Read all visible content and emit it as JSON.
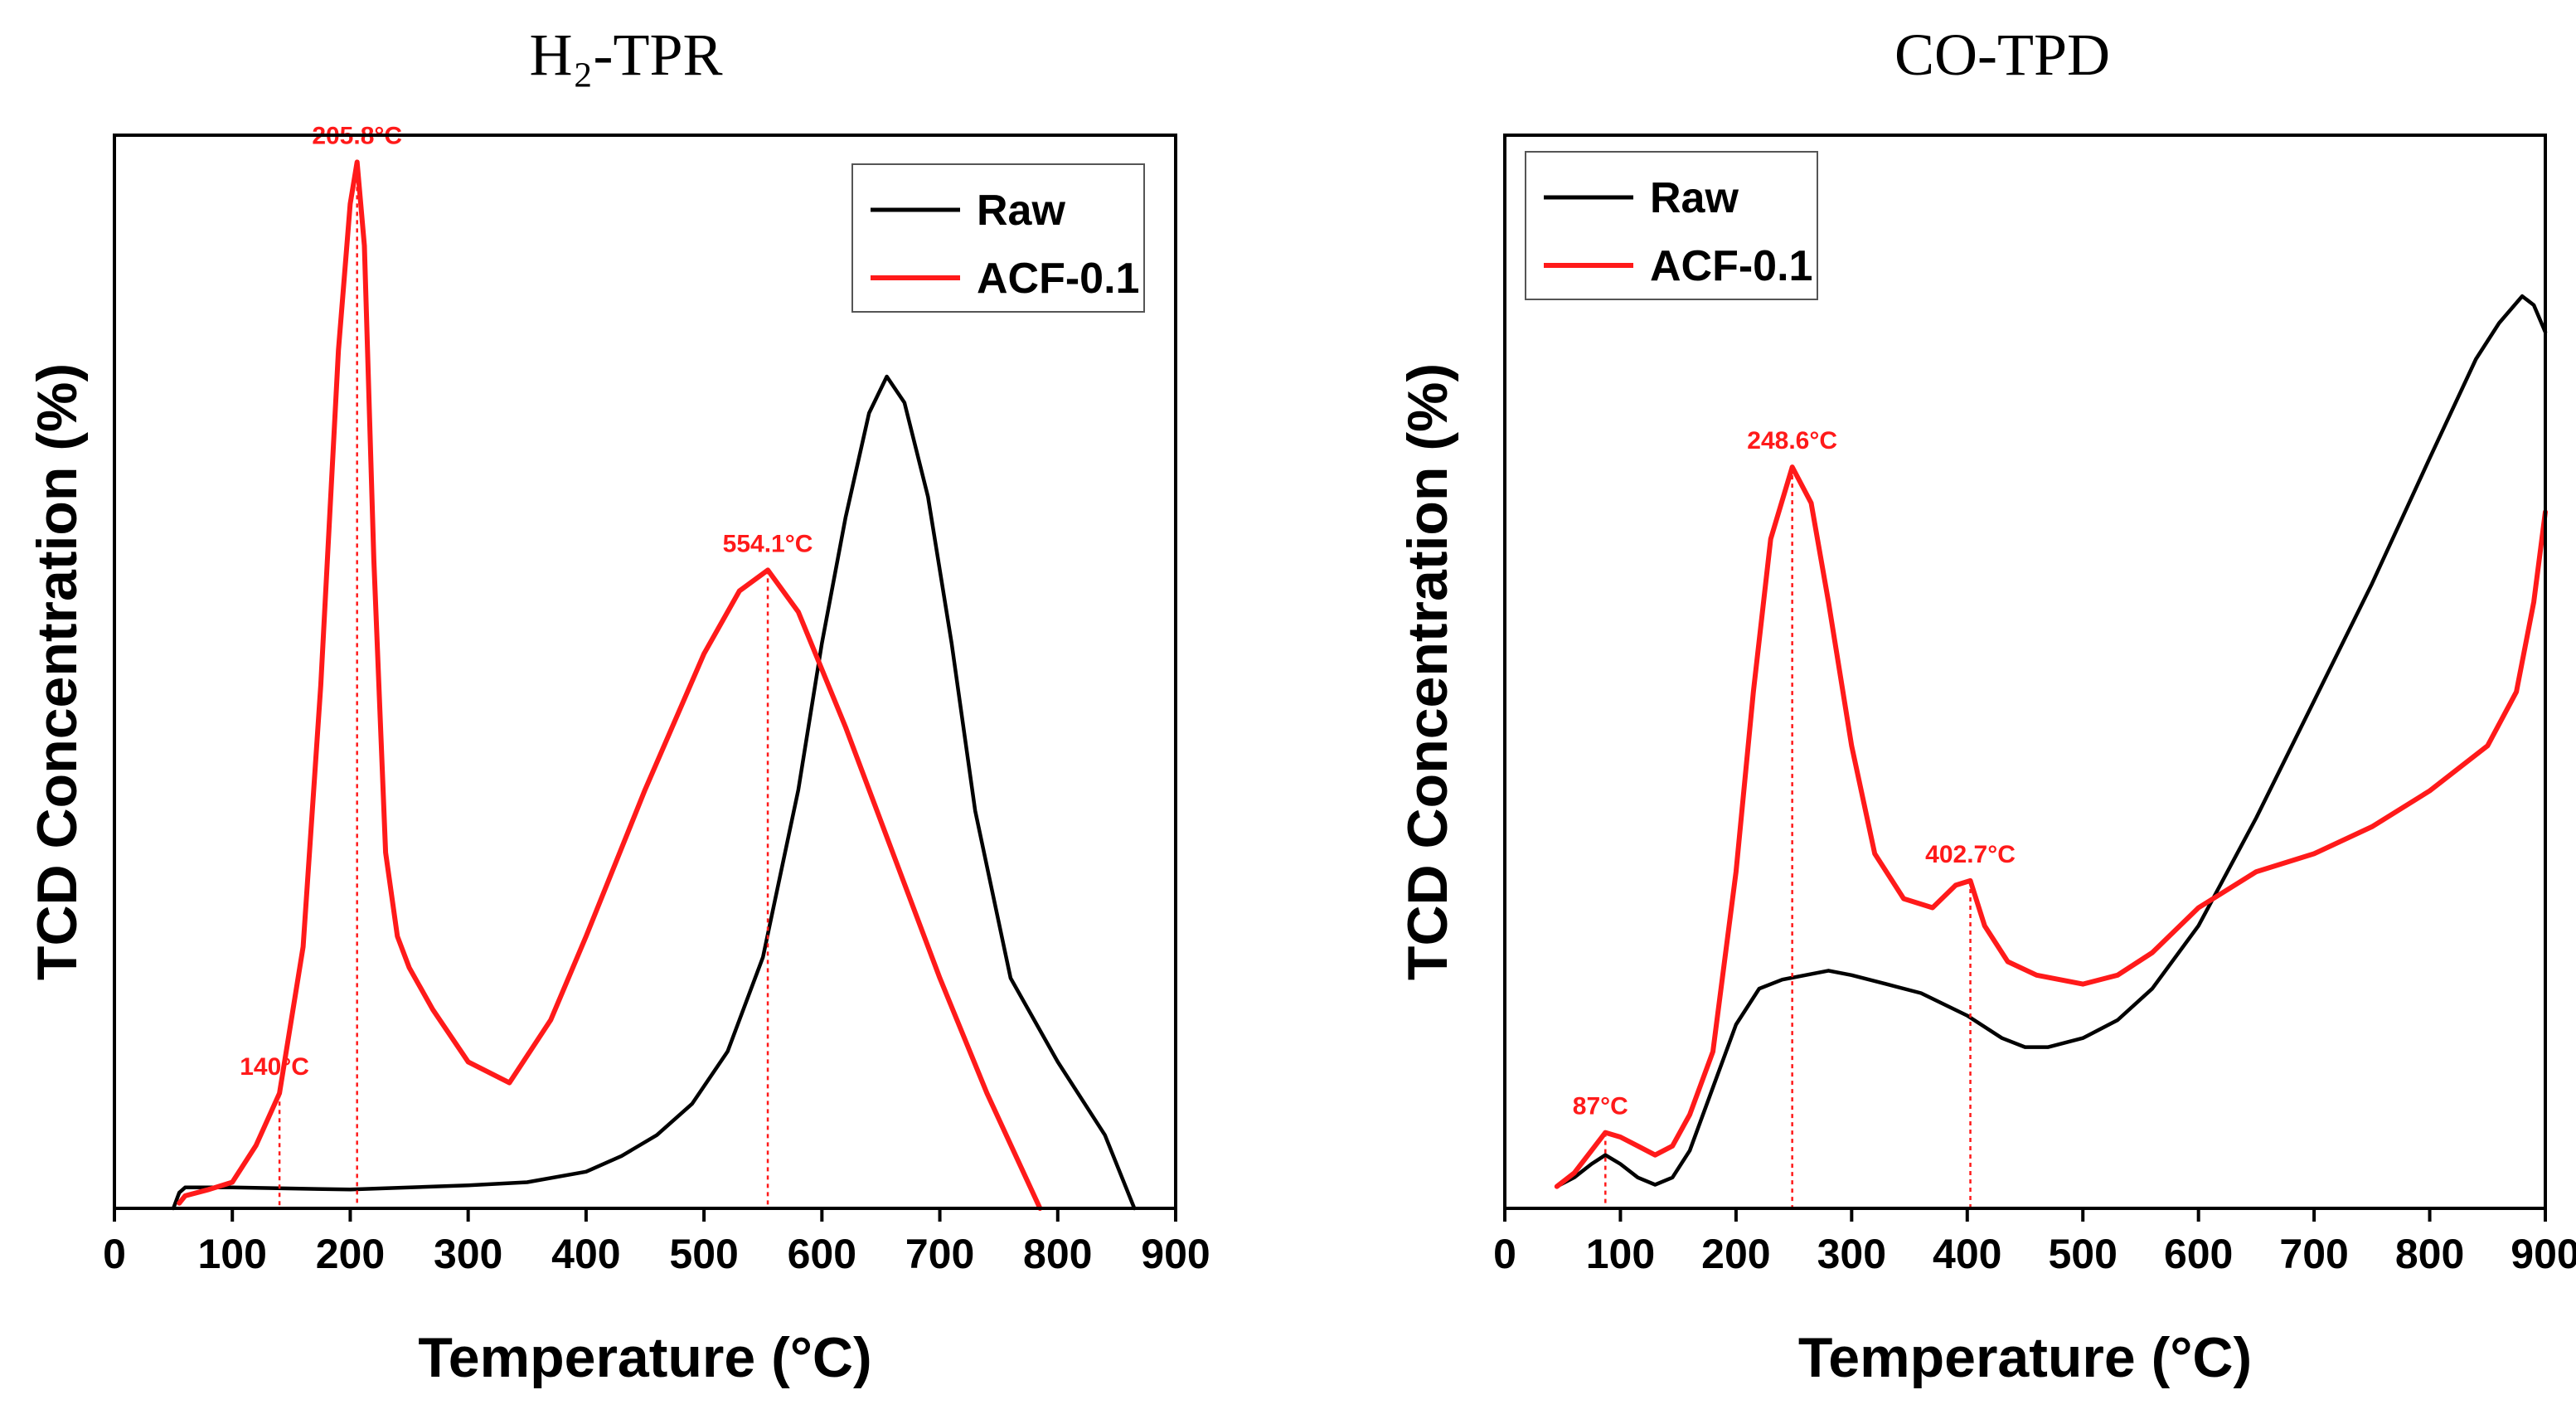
{
  "chart_data": [
    {
      "type": "line",
      "title": "H₂-TPR",
      "xlabel": "Temperature (°C)",
      "ylabel": "TCD Concentration (%)",
      "xlim": [
        0,
        900
      ],
      "ylim": [
        0,
        1
      ],
      "xticks": [
        0,
        100,
        200,
        300,
        400,
        500,
        600,
        700,
        800,
        900
      ],
      "xtick_labels": [
        "0",
        "100",
        "200",
        "300",
        "400",
        "500",
        "600",
        "700",
        "800",
        "900"
      ],
      "grid": false,
      "legend_position": "top-right",
      "series": [
        {
          "name": "Raw",
          "color": "#000000",
          "x": [
            50,
            55,
            60,
            100,
            200,
            300,
            350,
            400,
            430,
            460,
            490,
            520,
            550,
            580,
            600,
            620,
            640,
            655,
            670,
            690,
            710,
            730,
            760,
            800,
            840,
            865
          ],
          "y": [
            0.0,
            0.015,
            0.02,
            0.02,
            0.018,
            0.022,
            0.025,
            0.035,
            0.05,
            0.07,
            0.1,
            0.15,
            0.24,
            0.4,
            0.54,
            0.66,
            0.76,
            0.795,
            0.77,
            0.68,
            0.54,
            0.38,
            0.22,
            0.14,
            0.07,
            0.0
          ]
        },
        {
          "name": "ACF-0.1",
          "color": "#ff1a1a",
          "x": [
            55,
            60,
            80,
            100,
            120,
            140,
            160,
            175,
            190,
            200,
            205.8,
            212,
            220,
            230,
            240,
            250,
            270,
            300,
            335,
            370,
            400,
            450,
            500,
            530,
            554.1,
            580,
            620,
            660,
            700,
            740,
            785
          ],
          "y": [
            0.005,
            0.012,
            0.018,
            0.025,
            0.06,
            0.11,
            0.25,
            0.5,
            0.82,
            0.96,
            1.0,
            0.92,
            0.62,
            0.34,
            0.26,
            0.23,
            0.19,
            0.14,
            0.12,
            0.18,
            0.26,
            0.4,
            0.53,
            0.59,
            0.61,
            0.57,
            0.46,
            0.34,
            0.22,
            0.11,
            0.0
          ]
        }
      ],
      "annotations": [
        {
          "text": "140°C",
          "x": 140,
          "y": 0.11
        },
        {
          "text": "205.8°C",
          "x": 205.8,
          "y": 1.0
        },
        {
          "text": "554.1°C",
          "x": 554.1,
          "y": 0.61
        }
      ]
    },
    {
      "type": "line",
      "title": "CO-TPD",
      "xlabel": "Temperature (°C)",
      "ylabel": "TCD Concentration (%)",
      "xlim": [
        0,
        900
      ],
      "ylim": [
        0,
        1
      ],
      "xticks": [
        0,
        100,
        200,
        300,
        400,
        500,
        600,
        700,
        800,
        900
      ],
      "xtick_labels": [
        "0",
        "100",
        "200",
        "300",
        "400",
        "500",
        "600",
        "700",
        "800",
        "900"
      ],
      "grid": false,
      "legend_position": "top-left",
      "series": [
        {
          "name": "Raw",
          "color": "#000000",
          "x": [
            45,
            60,
            75,
            87,
            100,
            115,
            130,
            145,
            160,
            180,
            200,
            220,
            240,
            260,
            280,
            300,
            330,
            360,
            400,
            430,
            450,
            470,
            500,
            530,
            560,
            600,
            650,
            700,
            750,
            800,
            840,
            860,
            880,
            890,
            900
          ],
          "y": [
            0.01,
            0.02,
            0.035,
            0.045,
            0.035,
            0.02,
            0.012,
            0.02,
            0.05,
            0.12,
            0.19,
            0.23,
            0.24,
            0.245,
            0.25,
            0.245,
            0.235,
            0.225,
            0.2,
            0.175,
            0.165,
            0.165,
            0.175,
            0.195,
            0.23,
            0.3,
            0.42,
            0.55,
            0.68,
            0.82,
            0.93,
            0.97,
            1.0,
            0.99,
            0.96
          ]
        },
        {
          "name": "ACF-0.1",
          "color": "#ff1a1a",
          "x": [
            45,
            60,
            75,
            87,
            100,
            115,
            130,
            145,
            160,
            180,
            200,
            215,
            230,
            248.6,
            265,
            280,
            300,
            320,
            345,
            370,
            390,
            402.7,
            415,
            435,
            460,
            500,
            530,
            560,
            600,
            650,
            700,
            750,
            800,
            850,
            875,
            890,
            900
          ],
          "y": [
            0.01,
            0.025,
            0.05,
            0.07,
            0.065,
            0.055,
            0.045,
            0.055,
            0.09,
            0.16,
            0.36,
            0.56,
            0.73,
            0.81,
            0.77,
            0.66,
            0.5,
            0.38,
            0.33,
            0.32,
            0.345,
            0.35,
            0.3,
            0.26,
            0.245,
            0.235,
            0.245,
            0.27,
            0.32,
            0.36,
            0.38,
            0.41,
            0.45,
            0.5,
            0.56,
            0.66,
            0.76
          ]
        }
      ],
      "annotations": [
        {
          "text": "87°C",
          "x": 87,
          "y": 0.07
        },
        {
          "text": "248.6°C",
          "x": 248.6,
          "y": 0.81
        },
        {
          "text": "402.7°C",
          "x": 402.7,
          "y": 0.35
        }
      ]
    }
  ]
}
